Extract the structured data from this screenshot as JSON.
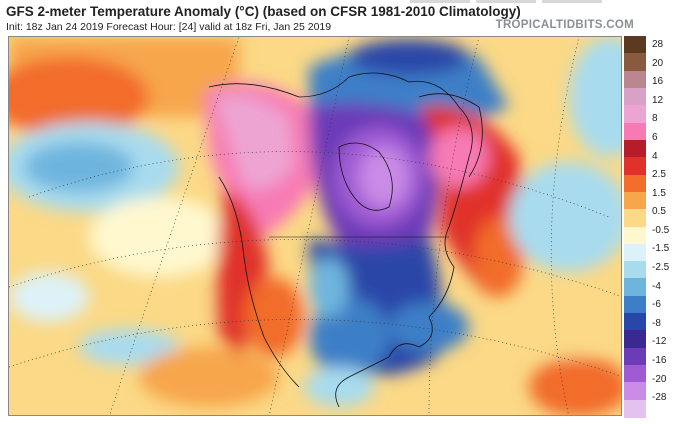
{
  "header": {
    "title": "GFS 2-meter Temperature Anomaly (°C) (based on CFSR 1981-2010 Climatology)",
    "subtitle": "Init: 18z Jan 24 2019   Forecast Hour: [24]   valid at 18z Fri, Jan 25 2019",
    "brand": "TROPICALTIDBITS.COM"
  },
  "colorbar": {
    "ticks": [
      "28",
      "20",
      "16",
      "12",
      "8",
      "6",
      "4",
      "2.5",
      "1.5",
      "0.5",
      "-0.5",
      "-1.5",
      "-2.5",
      "-4",
      "-6",
      "-8",
      "-12",
      "-16",
      "-20",
      "-28"
    ],
    "colors": [
      "#5b3a21",
      "#8a5a3e",
      "#b9858f",
      "#d8a2c6",
      "#eda4d2",
      "#f77ab4",
      "#b71c2a",
      "#e0312a",
      "#f26c2b",
      "#f7a64c",
      "#fbd986",
      "#fff8cf",
      "#ddf2f8",
      "#a8dbee",
      "#6eb5de",
      "#3c7fc7",
      "#2947a8",
      "#3c2891",
      "#6c3bb7",
      "#a05bd3",
      "#c98be6",
      "#e3c2ef"
    ]
  },
  "map": {
    "region": "North America"
  }
}
